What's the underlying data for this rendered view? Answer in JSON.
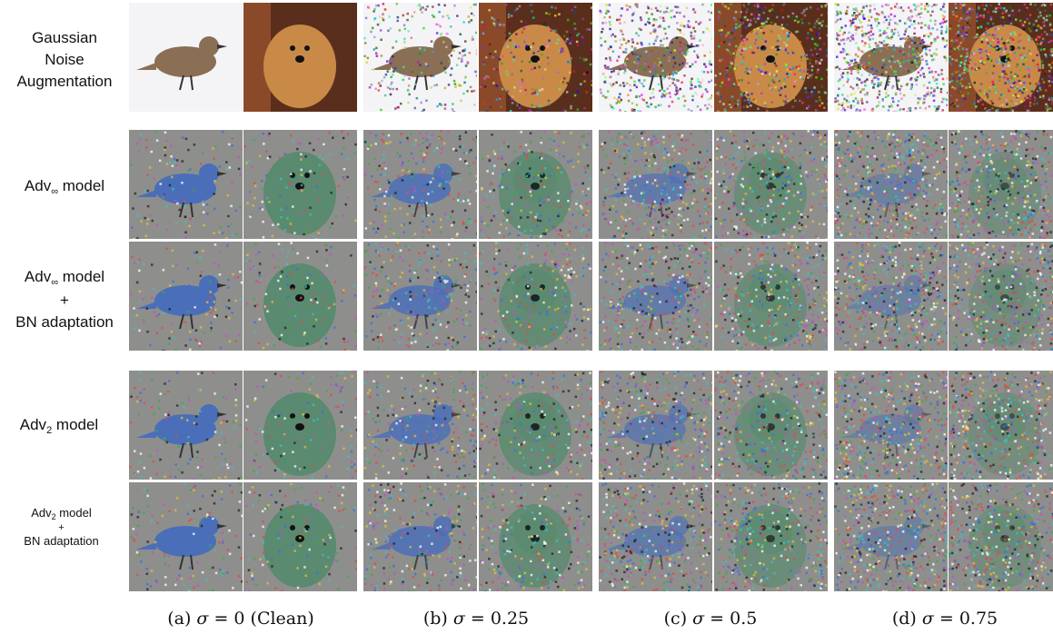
{
  "row_labels": {
    "gaussian": [
      "Gaussian",
      "Noise",
      "Augmentation"
    ],
    "adv_inf": {
      "prefix": "Adv",
      "sub": "∞",
      "suffix": " model"
    },
    "adv_inf_bn": {
      "prefix": "Adv",
      "sub": "∞",
      "suffix": " model",
      "plus": "+",
      "bn": "BN adaptation"
    },
    "adv2": {
      "prefix": "Adv",
      "sub": "2",
      "suffix": " model"
    },
    "adv2_bn": {
      "prefix": "Adv",
      "sub": "2",
      "suffix": " model",
      "plus": "+",
      "bn": "BN adaptation"
    }
  },
  "captions": [
    {
      "pre": "(a) ",
      "sym": "σ",
      "post": " = 0 (Clean)"
    },
    {
      "pre": "(b) ",
      "sym": "σ",
      "post": " = 0.25"
    },
    {
      "pre": "(c) ",
      "sym": "σ",
      "post": " = 0.5"
    },
    {
      "pre": "(d) ",
      "sym": "σ",
      "post": " = 0.75"
    }
  ],
  "sigma_levels": [
    0,
    0.25,
    0.5,
    0.75
  ],
  "subjects": [
    "bird",
    "dog"
  ]
}
